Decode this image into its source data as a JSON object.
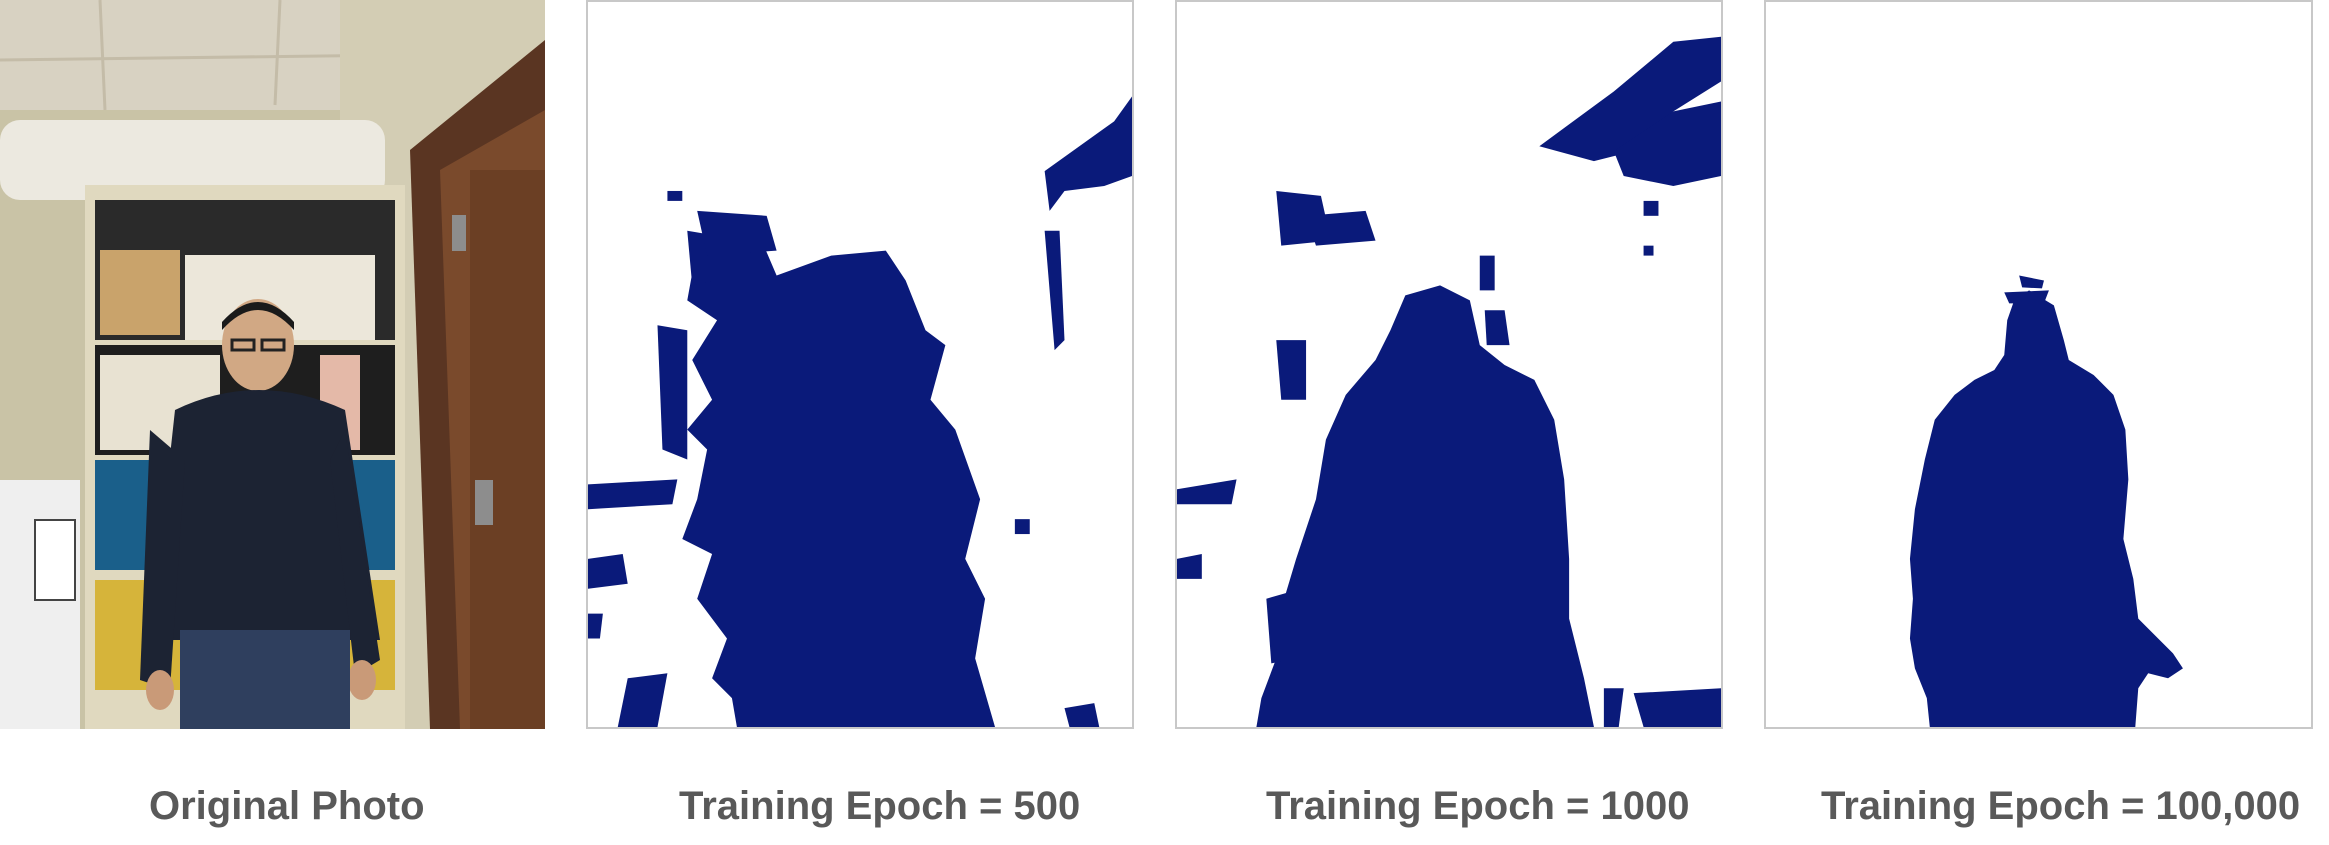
{
  "figure": {
    "panels": [
      {
        "caption": "Original Photo"
      },
      {
        "caption": "Training Epoch = 500",
        "mask_color": "#0a1a7a"
      },
      {
        "caption": "Training Epoch = 1000",
        "mask_color": "#0a1a7a"
      },
      {
        "caption": "Training Epoch = 100,000",
        "mask_color": "#0a1a7a"
      }
    ]
  }
}
